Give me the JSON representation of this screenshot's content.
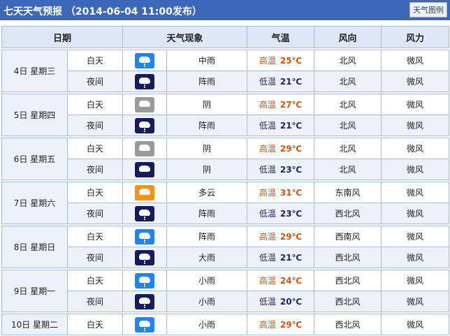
{
  "header": {
    "title": "七天天气预报 （2014-06-04 11:00发布）",
    "legend_button": "天气图例"
  },
  "columns": [
    "日期",
    "天气现象",
    "气温",
    "风向",
    "风力"
  ],
  "colors": {
    "rain_day": "#1f86ee",
    "night": "#141c5e",
    "overcast": "#9a9a9a",
    "cloudy": "#f7930e",
    "high": "#c4561c",
    "low": "#1d2466"
  },
  "days": [
    {
      "date": "4日  星期三",
      "rows": [
        {
          "period": "白天",
          "icon": "rain-day-icon",
          "icon_color": "#1f86ee",
          "weather": "中雨",
          "temp_label": "高温",
          "temp": "25℃",
          "dir": "北风",
          "power": "微风"
        },
        {
          "period": "夜间",
          "icon": "shower-night-icon",
          "icon_color": "#141c5e",
          "weather": "阵雨",
          "temp_label": "低温",
          "temp": "21℃",
          "dir": "北风",
          "power": "微风"
        }
      ]
    },
    {
      "date": "5日  星期四",
      "rows": [
        {
          "period": "白天",
          "icon": "overcast-icon",
          "icon_color": "#9a9a9a",
          "weather": "阴",
          "temp_label": "高温",
          "temp": "27℃",
          "dir": "北风",
          "power": "微风"
        },
        {
          "period": "夜间",
          "icon": "shower-night-icon",
          "icon_color": "#141c5e",
          "weather": "阵雨",
          "temp_label": "低温",
          "temp": "21℃",
          "dir": "北风",
          "power": "微风"
        }
      ]
    },
    {
      "date": "6日  星期五",
      "rows": [
        {
          "period": "白天",
          "icon": "overcast-icon",
          "icon_color": "#9a9a9a",
          "weather": "阴",
          "temp_label": "高温",
          "temp": "29℃",
          "dir": "北风",
          "power": "微风"
        },
        {
          "period": "夜间",
          "icon": "overcast-night-icon",
          "icon_color": "#141c5e",
          "weather": "阴",
          "temp_label": "低温",
          "temp": "23℃",
          "dir": "北风",
          "power": "微风"
        }
      ]
    },
    {
      "date": "7日  星期六",
      "rows": [
        {
          "period": "白天",
          "icon": "partly-cloudy-icon",
          "icon_color": "#f7930e",
          "weather": "多云",
          "temp_label": "高温",
          "temp": "31℃",
          "dir": "东南风",
          "power": "微风"
        },
        {
          "period": "夜间",
          "icon": "shower-night-icon",
          "icon_color": "#141c5e",
          "weather": "阵雨",
          "temp_label": "低温",
          "temp": "23℃",
          "dir": "西北风",
          "power": "微风"
        }
      ]
    },
    {
      "date": "8日  星期日",
      "rows": [
        {
          "period": "白天",
          "icon": "shower-day-icon",
          "icon_color": "#1f86ee",
          "weather": "阵雨",
          "temp_label": "高温",
          "temp": "29℃",
          "dir": "西南风",
          "power": "微风"
        },
        {
          "period": "夜间",
          "icon": "heavy-rain-night-icon",
          "icon_color": "#141c5e",
          "weather": "大雨",
          "temp_label": "低温",
          "temp": "21℃",
          "dir": "西北风",
          "power": "微风"
        }
      ]
    },
    {
      "date": "9日  星期一",
      "rows": [
        {
          "period": "白天",
          "icon": "light-rain-day-icon",
          "icon_color": "#1f86ee",
          "weather": "小雨",
          "temp_label": "高温",
          "temp": "24℃",
          "dir": "西北风",
          "power": "微风"
        },
        {
          "period": "夜间",
          "icon": "light-rain-night-icon",
          "icon_color": "#141c5e",
          "weather": "小雨",
          "temp_label": "低温",
          "temp": "20℃",
          "dir": "西北风",
          "power": "微风"
        }
      ]
    },
    {
      "date": "10日  星期二",
      "rows": [
        {
          "period": "白天",
          "icon": "light-rain-day-icon",
          "icon_color": "#1f86ee",
          "weather": "小雨",
          "temp_label": "高温",
          "temp": "29℃",
          "dir": "西北风",
          "power": "微风"
        }
      ]
    }
  ]
}
